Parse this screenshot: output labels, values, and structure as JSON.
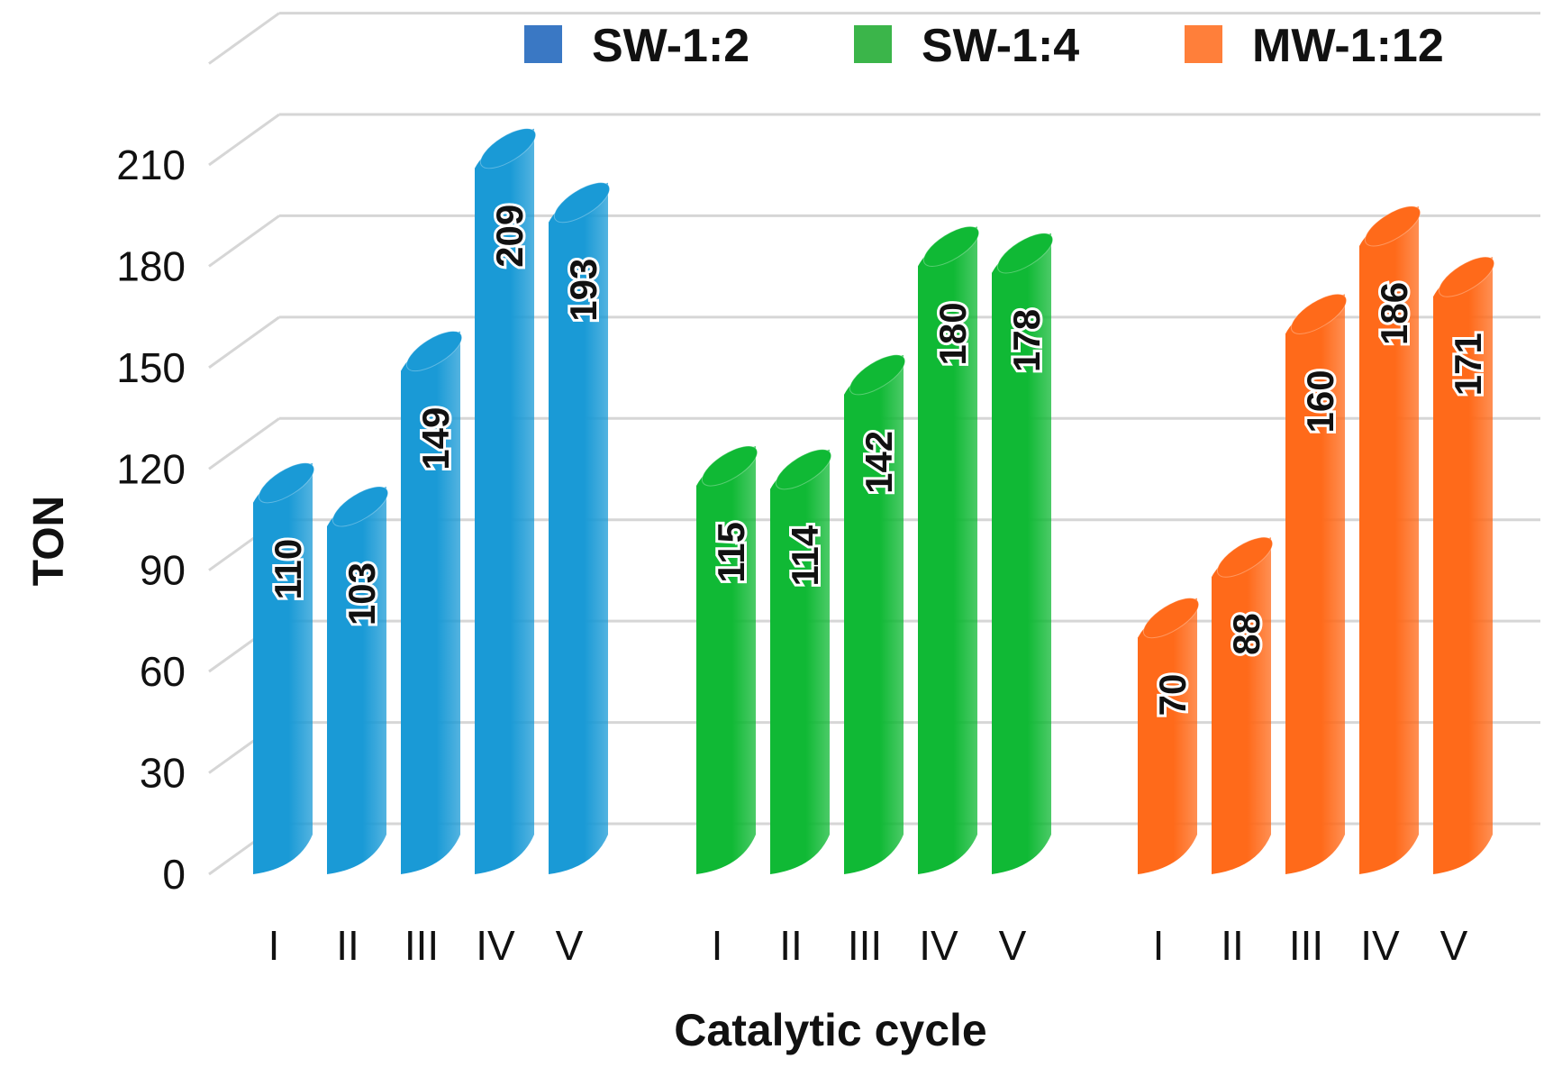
{
  "chart_data": {
    "type": "bar",
    "title": "",
    "xlabel": "Catalytic cycle",
    "ylabel": "TON",
    "ylim": [
      0,
      210
    ],
    "yticks": [
      0,
      30,
      60,
      90,
      120,
      150,
      180,
      210
    ],
    "categories": [
      "I",
      "II",
      "III",
      "IV",
      "V"
    ],
    "legend_position": "top-right",
    "grid": true,
    "series": [
      {
        "name": "SW-1:2",
        "color": "#1a9ad6",
        "legend_color": "#3a78c4",
        "values": [
          110,
          103,
          149,
          209,
          193
        ]
      },
      {
        "name": "SW-1:4",
        "color": "#10b935",
        "legend_color": "#3bb54a",
        "values": [
          115,
          114,
          142,
          180,
          178
        ]
      },
      {
        "name": "MW-1:12",
        "color": "#ff6a1a",
        "legend_color": "#ff7f3a",
        "values": [
          70,
          88,
          160,
          186,
          171
        ]
      }
    ]
  }
}
